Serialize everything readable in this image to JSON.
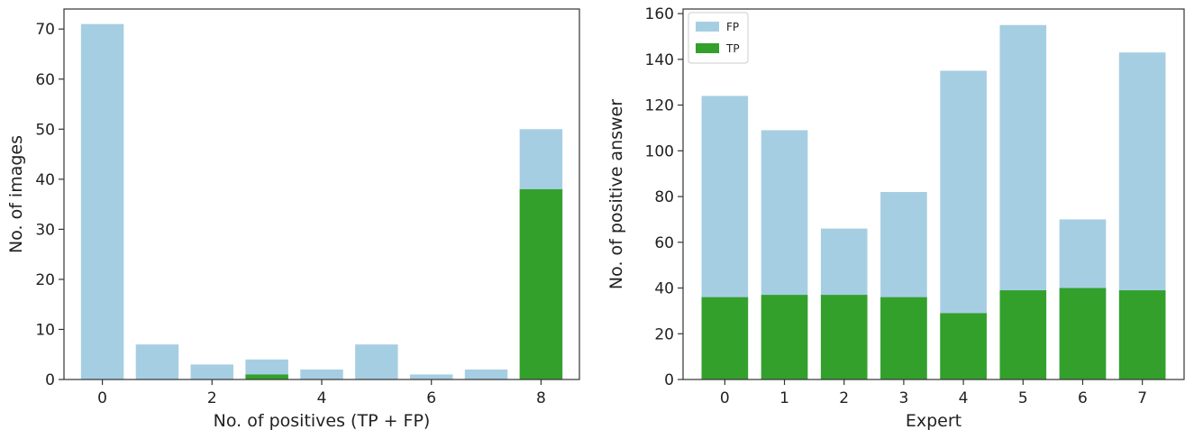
{
  "chart_data": [
    {
      "type": "bar",
      "stacked": "overlay",
      "xlabel": "No. of positives (TP + FP)",
      "ylabel": "No. of images",
      "x": [
        0,
        1,
        2,
        3,
        4,
        5,
        6,
        7,
        8
      ],
      "xticks": [
        0,
        2,
        4,
        6,
        8
      ],
      "xlim": [
        -0.7,
        8.7
      ],
      "ylim": [
        0,
        74
      ],
      "yticks": [
        0,
        10,
        20,
        30,
        40,
        50,
        60,
        70
      ],
      "grid": false,
      "legend": false,
      "series": [
        {
          "name": "",
          "color": "#a6cee3",
          "values": [
            71,
            7,
            3,
            4,
            2,
            7,
            1,
            2,
            50
          ]
        },
        {
          "name": "",
          "color": "#33a02c",
          "values": [
            0,
            0,
            0,
            1,
            0,
            0,
            0,
            0,
            38
          ]
        }
      ]
    },
    {
      "type": "bar",
      "stacked": "overlay",
      "xlabel": "Expert",
      "ylabel": "No. of positive answer",
      "x": [
        0,
        1,
        2,
        3,
        4,
        5,
        6,
        7
      ],
      "xticks": [
        0,
        1,
        2,
        3,
        4,
        5,
        6,
        7
      ],
      "xlim": [
        -0.7,
        7.7
      ],
      "ylim": [
        0,
        162
      ],
      "yticks": [
        0,
        20,
        40,
        60,
        80,
        100,
        120,
        140,
        160
      ],
      "grid": false,
      "legend": true,
      "legend_position": "upper-left",
      "series": [
        {
          "name": "FP",
          "color": "#a6cee3",
          "values": [
            124,
            109,
            66,
            82,
            135,
            155,
            70,
            143
          ]
        },
        {
          "name": "TP",
          "color": "#33a02c",
          "values": [
            36,
            37,
            37,
            36,
            29,
            39,
            40,
            39
          ]
        }
      ]
    }
  ]
}
